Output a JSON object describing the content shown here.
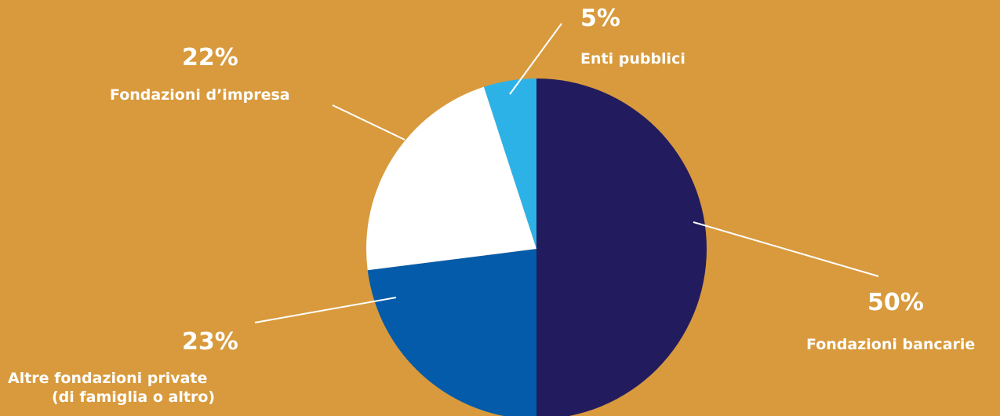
{
  "chart_data": {
    "type": "pie",
    "slices": [
      {
        "label": "Fondazioni bancarie",
        "value": 50,
        "value_label": "50%",
        "color": "#221C5E"
      },
      {
        "label_line1": "Altre fondazioni private",
        "label_line2": "(di famiglia o altro)",
        "value": 23,
        "value_label": "23%",
        "color": "#035BAA"
      },
      {
        "label": "Fondazioni d’impresa",
        "value": 22,
        "value_label": "22%",
        "color": "#FFFFFF"
      },
      {
        "label": "Enti pubblici",
        "value": 5,
        "value_label": "5%",
        "color": "#2DB2E8"
      }
    ],
    "start": "top",
    "direction": "clockwise",
    "background": "#D89A3C",
    "label_color": "#FFFFFF"
  }
}
